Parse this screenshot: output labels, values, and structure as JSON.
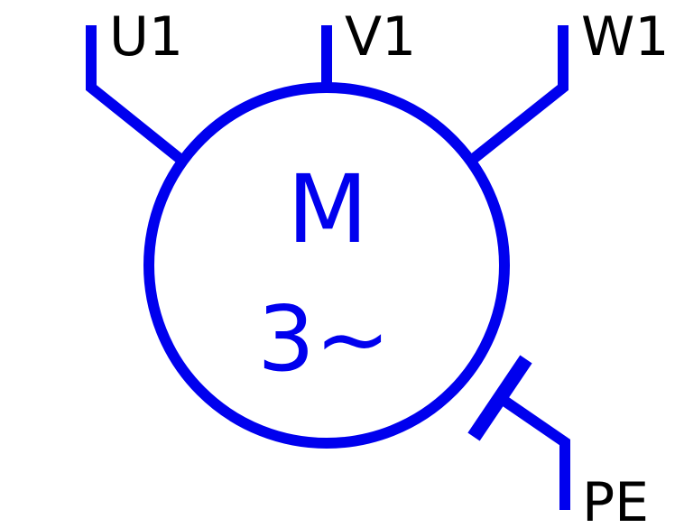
{
  "colors": {
    "stroke": "#0000ee",
    "motor_text": "#0000ee",
    "terminal_label": "#000000"
  },
  "symbol": "three-phase-motor",
  "motor": {
    "letter": "M",
    "phase": "3~"
  },
  "terminals": [
    {
      "id": "u1",
      "label": "U1"
    },
    {
      "id": "v1",
      "label": "V1"
    },
    {
      "id": "w1",
      "label": "W1"
    },
    {
      "id": "pe",
      "label": "PE"
    }
  ]
}
